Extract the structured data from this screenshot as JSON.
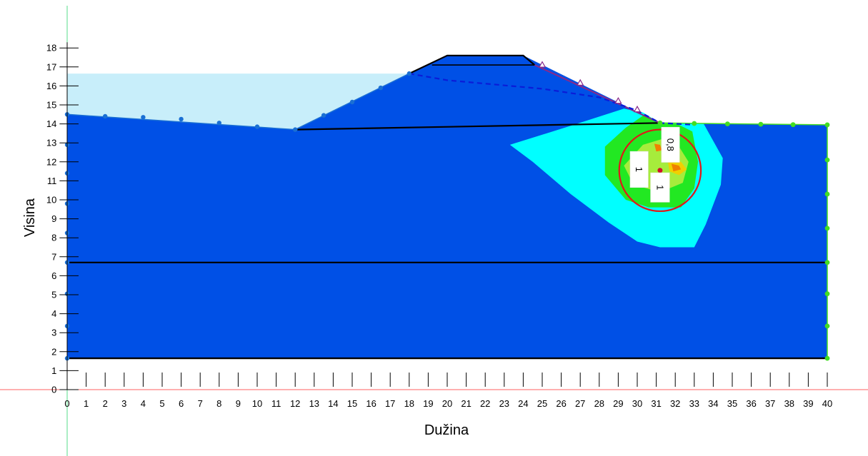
{
  "axes": {
    "x_label": "Dužina",
    "y_label": "Visina",
    "x_ticks": [
      "0",
      "1",
      "2",
      "3",
      "4",
      "5",
      "6",
      "7",
      "8",
      "9",
      "10",
      "11",
      "12",
      "13",
      "14",
      "15",
      "16",
      "17",
      "18",
      "19",
      "20",
      "21",
      "22",
      "23",
      "24",
      "25",
      "26",
      "27",
      "28",
      "29",
      "30",
      "31",
      "32",
      "33",
      "34",
      "35",
      "36",
      "37",
      "38",
      "39",
      "40"
    ],
    "y_ticks": [
      "0",
      "1",
      "2",
      "3",
      "4",
      "5",
      "6",
      "7",
      "8",
      "9",
      "10",
      "11",
      "12",
      "13",
      "14",
      "15",
      "16",
      "17",
      "18"
    ]
  },
  "colors": {
    "soil": "#0050e6",
    "water": "#c8eefa",
    "contour_cyan": "#00ffff",
    "contour_green": "#22e822",
    "contour_lightgreen": "#a6ec3c",
    "contour_yellow": "#f0d000",
    "contour_orange": "#f08000",
    "slip_circle": "#e01818",
    "center_point": "#d0102a",
    "layer_line": "#000000",
    "piezometric_line": "#0a1cd8",
    "left_points": "#1a6fd4",
    "right_points": "#44dd22",
    "triangle_markers": "#8a2a8a",
    "axis_x_line": "#ff6060",
    "axis_y_line": "#55dd88"
  },
  "contour_labels": [
    "1",
    "1",
    "0,8"
  ]
}
